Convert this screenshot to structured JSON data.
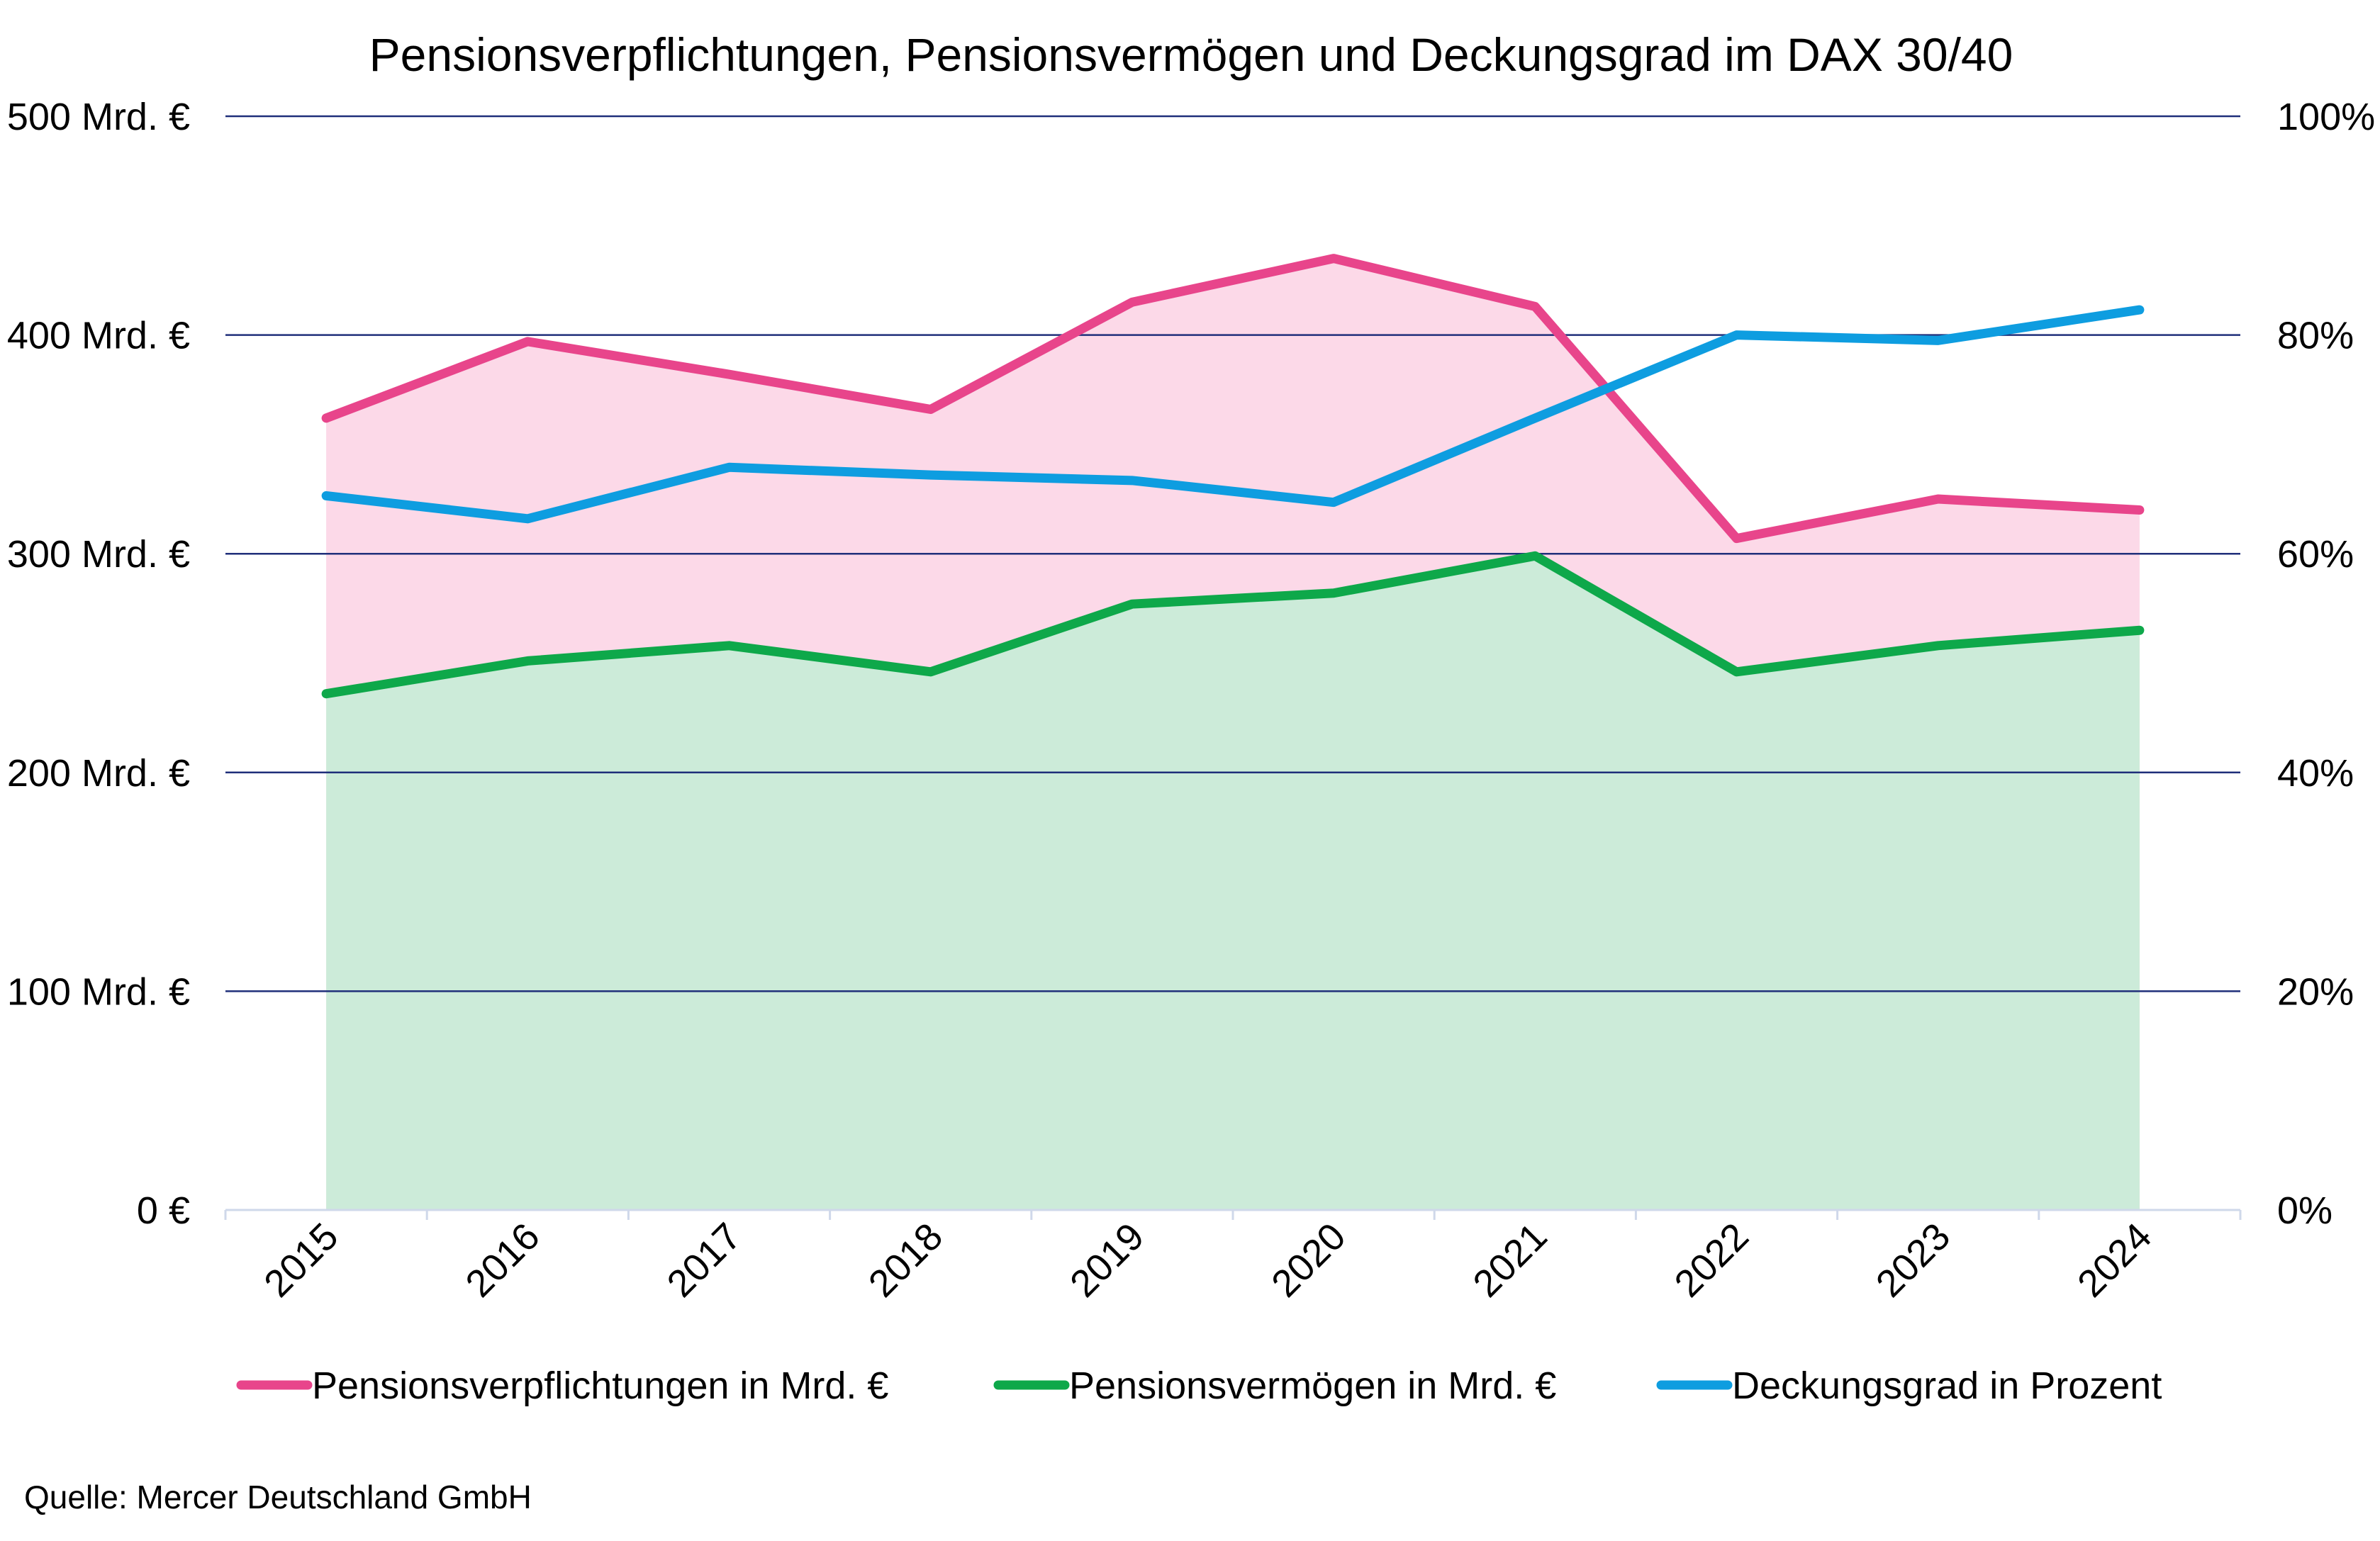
{
  "chart_data": {
    "type": "area",
    "title": "Pensionsverpflichtungen, Pensionsvermögen und Deckungsgrad im DAX 30/40",
    "categories": [
      "2015",
      "2016",
      "2017",
      "2018",
      "2019",
      "2020",
      "2021",
      "2022",
      "2023",
      "2024"
    ],
    "y_left": {
      "ylim": [
        0,
        500
      ],
      "ticks": [
        0,
        100,
        200,
        300,
        400,
        500
      ],
      "tick_labels": [
        "0 €",
        "100 Mrd. €",
        "200 Mrd. €",
        "300 Mrd. €",
        "400 Mrd. €",
        "500 Mrd. €"
      ]
    },
    "y_right": {
      "ylim": [
        0,
        100
      ],
      "ticks": [
        0,
        20,
        40,
        60,
        80,
        100
      ],
      "tick_labels": [
        "0%",
        "20%",
        "40%",
        "60%",
        "80%",
        "100%"
      ]
    },
    "grid": true,
    "legend_position": "bottom",
    "series": [
      {
        "name": "Pensionsverpflichtungen in Mrd. €",
        "axis": "left",
        "color": "#e8458b",
        "fill": "#fcd9e8",
        "values": [
          362,
          397,
          382,
          366,
          415,
          435,
          413,
          307,
          325,
          320
        ]
      },
      {
        "name": "Pensionsvermögen in Mrd. €",
        "axis": "left",
        "color": "#0ea84a",
        "fill": "#ccebd9",
        "values": [
          236,
          251,
          258,
          246,
          277,
          282,
          299,
          246,
          258,
          265
        ]
      },
      {
        "name": "Deckungsgrad in Prozent",
        "axis": "right",
        "color": "#0e9de0",
        "values": [
          65.3,
          63.2,
          67.9,
          67.2,
          66.7,
          64.7,
          72.4,
          80.0,
          79.5,
          82.3
        ]
      }
    ],
    "source": "Quelle: Mercer Deutschland GmbH"
  }
}
